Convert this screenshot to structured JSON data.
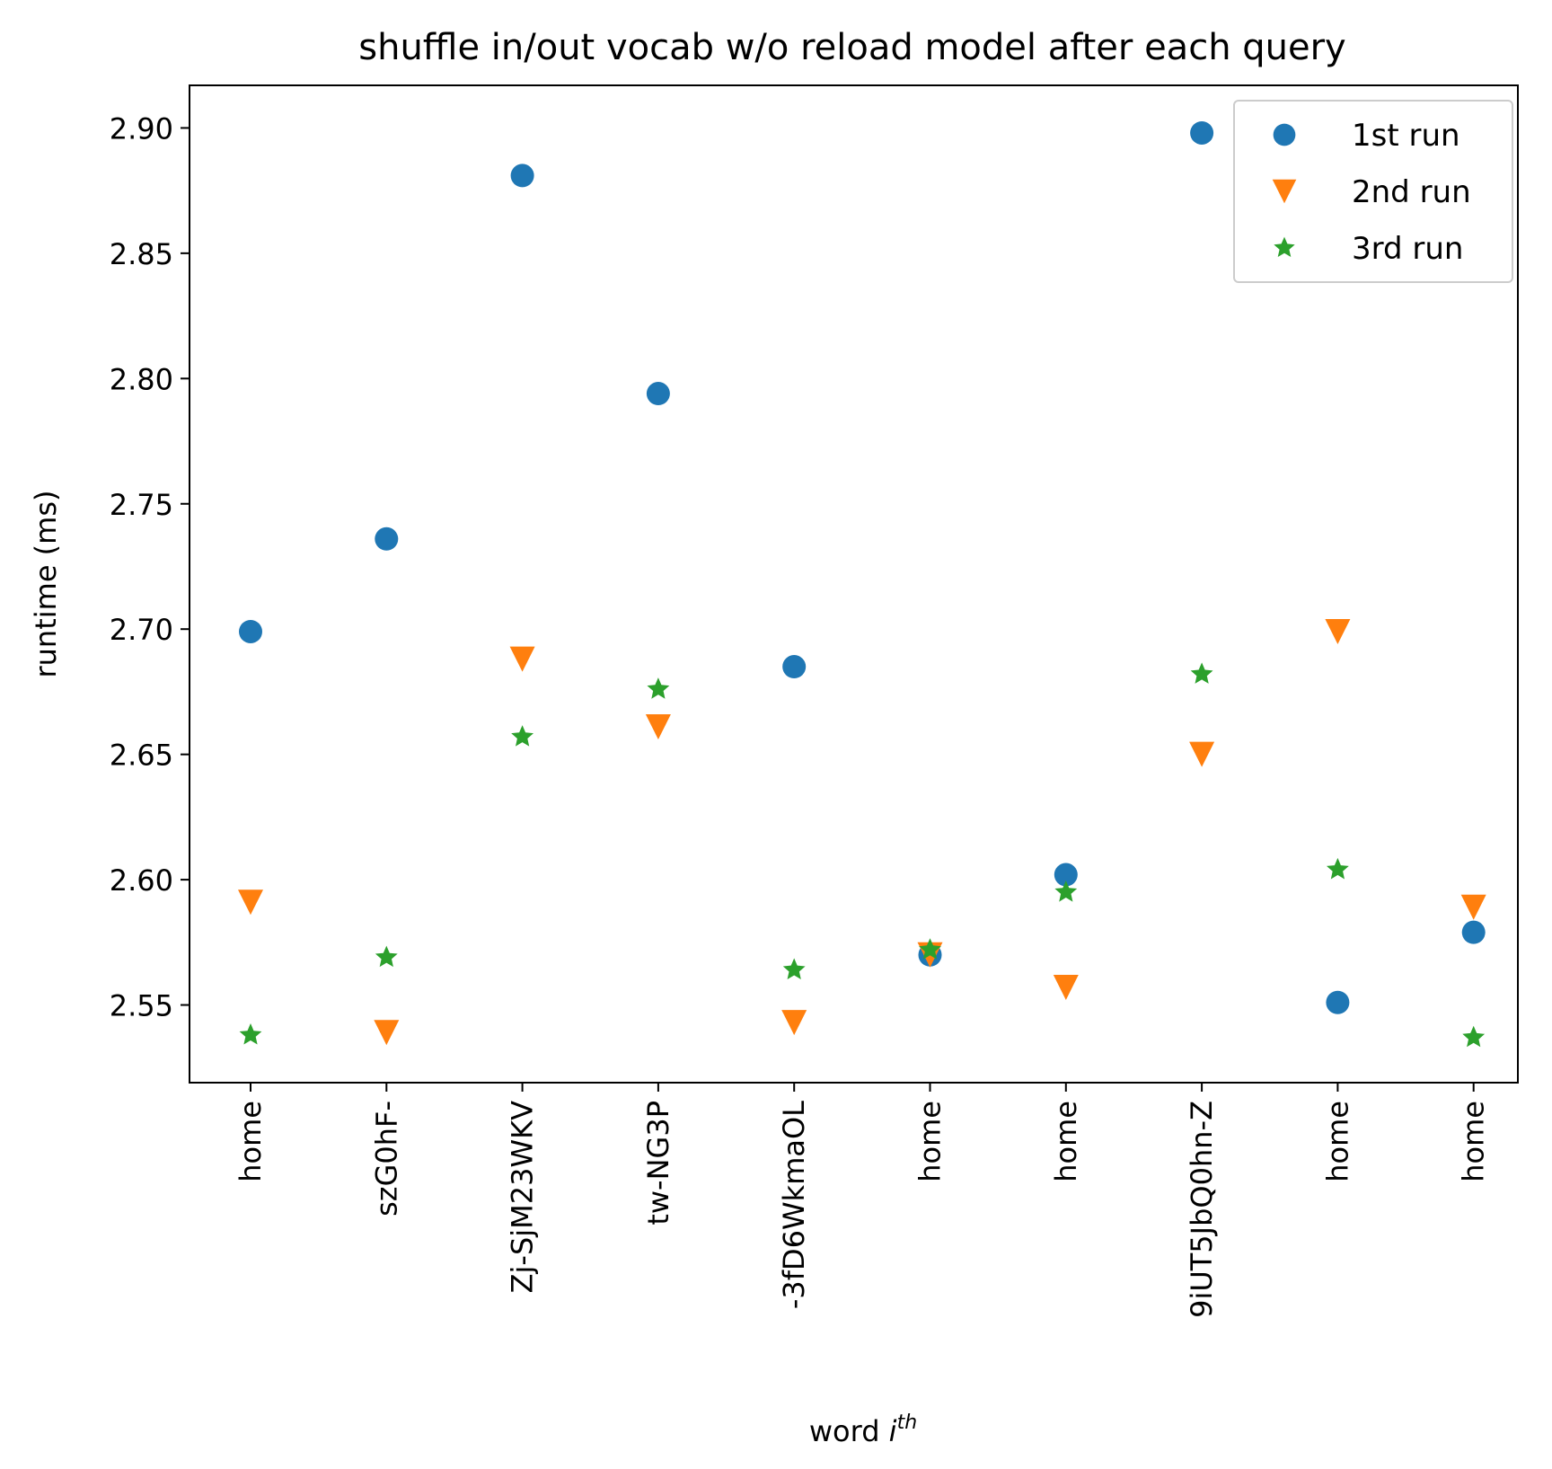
{
  "chart_data": {
    "type": "scatter",
    "title": "shuffle in/out vocab w/o reload model after each query",
    "xlabel": "word ",
    "xlabel_math": "i",
    "xlabel_sup": "th",
    "ylabel": "runtime (ms)",
    "categories": [
      "home",
      "szG0hF-",
      "Zj-SjM23WKV",
      "tw-NG3P",
      "-3fD6WkmaOL",
      "home",
      "home",
      "9iUT5JbQ0hn-Z",
      "home",
      "home"
    ],
    "ylim": [
      2.519,
      2.917
    ],
    "yticks": [
      2.55,
      2.6,
      2.65,
      2.7,
      2.75,
      2.8,
      2.85,
      2.9
    ],
    "ytick_labels": [
      "2.55",
      "2.60",
      "2.65",
      "2.70",
      "2.75",
      "2.80",
      "2.85",
      "2.90"
    ],
    "grid": false,
    "legend_position": "top-right",
    "series": [
      {
        "name": "1st run",
        "marker": "circle",
        "color": "#1f77b4",
        "values": [
          2.699,
          2.736,
          2.881,
          2.794,
          2.685,
          2.57,
          2.602,
          2.898,
          2.551,
          2.579
        ]
      },
      {
        "name": "2nd run",
        "marker": "triangle-down",
        "color": "#ff7f0e",
        "values": [
          2.591,
          2.539,
          2.688,
          2.661,
          2.543,
          2.57,
          2.557,
          2.65,
          2.699,
          2.589
        ]
      },
      {
        "name": "3rd run",
        "marker": "star",
        "color": "#2ca02c",
        "values": [
          2.538,
          2.569,
          2.657,
          2.676,
          2.564,
          2.572,
          2.595,
          2.682,
          2.604,
          2.537
        ]
      }
    ]
  }
}
